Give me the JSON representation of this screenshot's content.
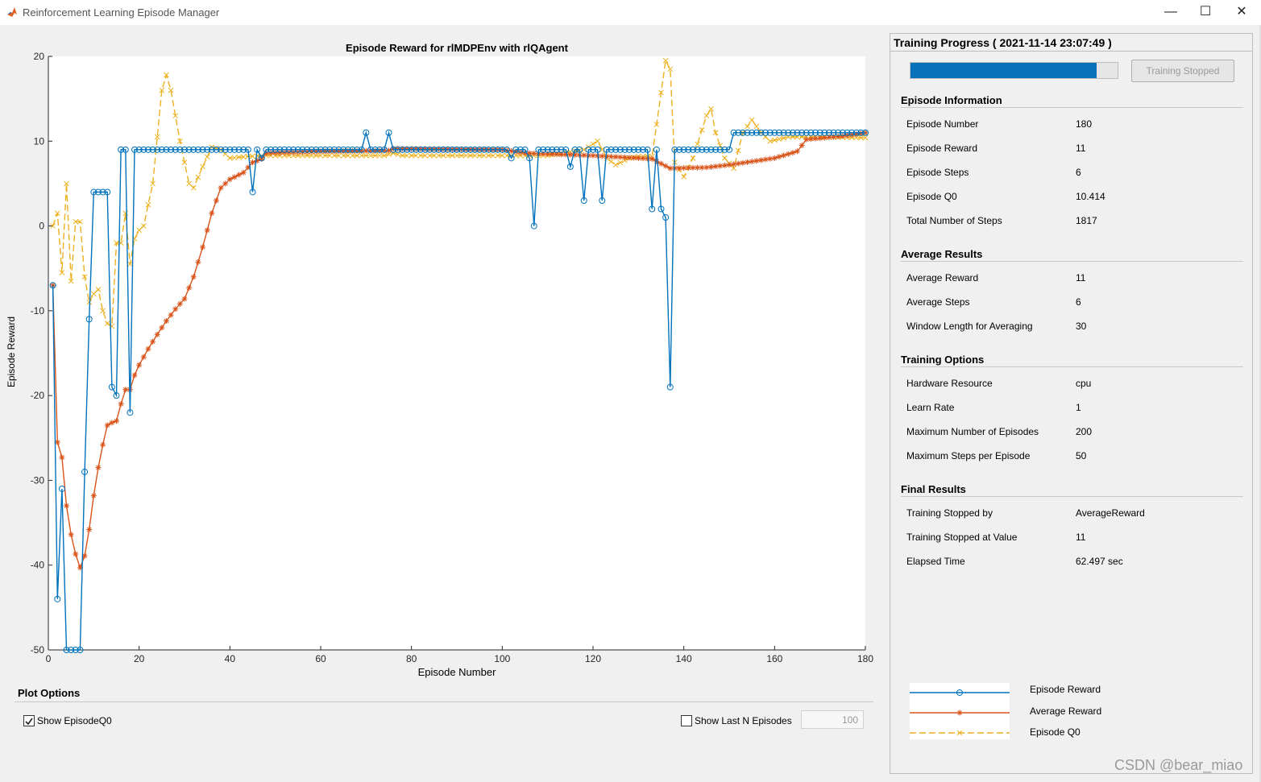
{
  "window": {
    "title": "Reinforcement Learning Episode Manager",
    "minimize": "—",
    "maximize": "☐",
    "close": "✕"
  },
  "chart_data": {
    "type": "line",
    "title": "Episode Reward for rlMDPEnv with rlQAgent",
    "xlabel": "Episode Number",
    "ylabel": "Episode Reward",
    "xlim": [
      0,
      180
    ],
    "ylim": [
      -50,
      20
    ],
    "xticks": [
      0,
      20,
      40,
      60,
      80,
      100,
      120,
      140,
      160,
      180
    ],
    "yticks": [
      -50,
      -40,
      -30,
      -20,
      -10,
      0,
      10,
      20
    ],
    "grid": false,
    "series": [
      {
        "name": "Episode Reward",
        "color": "#0072bd",
        "marker": "circle",
        "dash": "solid",
        "points": [
          [
            1,
            -7
          ],
          [
            2,
            -44
          ],
          [
            3,
            -31
          ],
          [
            4,
            -50
          ],
          [
            5,
            -50
          ],
          [
            6,
            -50
          ],
          [
            7,
            -50
          ],
          [
            8,
            -29
          ],
          [
            9,
            -11
          ],
          [
            10,
            4
          ],
          [
            11,
            4
          ],
          [
            12,
            4
          ],
          [
            13,
            4
          ],
          [
            14,
            -19
          ],
          [
            15,
            -20
          ],
          [
            16,
            9
          ],
          [
            17,
            9
          ],
          [
            18,
            -22
          ],
          [
            19,
            9
          ],
          [
            20,
            9
          ],
          [
            30,
            9
          ],
          [
            40,
            9
          ],
          [
            44,
            9
          ],
          [
            45,
            4
          ],
          [
            46,
            9
          ],
          [
            47,
            8
          ],
          [
            48,
            9
          ],
          [
            60,
            9
          ],
          [
            69,
            9
          ],
          [
            70,
            11
          ],
          [
            71,
            9
          ],
          [
            74,
            9
          ],
          [
            75,
            11
          ],
          [
            76,
            9
          ],
          [
            90,
            9
          ],
          [
            101,
            9
          ],
          [
            102,
            8
          ],
          [
            103,
            9
          ],
          [
            105,
            9
          ],
          [
            106,
            8
          ],
          [
            107,
            0
          ],
          [
            108,
            9
          ],
          [
            114,
            9
          ],
          [
            115,
            7
          ],
          [
            116,
            9
          ],
          [
            117,
            9
          ],
          [
            118,
            3
          ],
          [
            119,
            9
          ],
          [
            121,
            9
          ],
          [
            122,
            3
          ],
          [
            123,
            9
          ],
          [
            132,
            9
          ],
          [
            133,
            2
          ],
          [
            134,
            9
          ],
          [
            135,
            2
          ],
          [
            136,
            1
          ],
          [
            137,
            -19
          ],
          [
            138,
            9
          ],
          [
            150,
            9
          ],
          [
            151,
            11
          ],
          [
            180,
            11
          ]
        ]
      },
      {
        "name": "Average Reward",
        "color": "#d95319",
        "marker": "star",
        "dash": "solid",
        "points": [
          [
            1,
            -7
          ],
          [
            2,
            -25.5
          ],
          [
            3,
            -27.3
          ],
          [
            4,
            -33
          ],
          [
            5,
            -36.4
          ],
          [
            6,
            -38.7
          ],
          [
            7,
            -40.3
          ],
          [
            8,
            -38.9
          ],
          [
            9,
            -35.8
          ],
          [
            10,
            -31.8
          ],
          [
            11,
            -28.5
          ],
          [
            12,
            -25.8
          ],
          [
            13,
            -23.5
          ],
          [
            14,
            -23.2
          ],
          [
            15,
            -23
          ],
          [
            16,
            -21
          ],
          [
            17,
            -19.3
          ],
          [
            18,
            -19.3
          ],
          [
            19,
            -17.6
          ],
          [
            20,
            -16.4
          ],
          [
            22,
            -14.5
          ],
          [
            24,
            -12.8
          ],
          [
            26,
            -11.2
          ],
          [
            28,
            -9.8
          ],
          [
            30,
            -8.6
          ],
          [
            32,
            -6
          ],
          [
            34,
            -2.5
          ],
          [
            36,
            1.5
          ],
          [
            38,
            4.5
          ],
          [
            40,
            5.5
          ],
          [
            43,
            6.3
          ],
          [
            45,
            7.5
          ],
          [
            47,
            7.9
          ],
          [
            48,
            8.6
          ],
          [
            60,
            8.8
          ],
          [
            75,
            8.9
          ],
          [
            76,
            9.1
          ],
          [
            100,
            9
          ],
          [
            105,
            8.6
          ],
          [
            120,
            8.3
          ],
          [
            130,
            8
          ],
          [
            133,
            7.9
          ],
          [
            137,
            6.8
          ],
          [
            145,
            6.9
          ],
          [
            150,
            7.2
          ],
          [
            160,
            8
          ],
          [
            165,
            8.8
          ],
          [
            167,
            10.2
          ],
          [
            175,
            10.6
          ],
          [
            180,
            11
          ]
        ]
      },
      {
        "name": "Episode Q0",
        "color": "#edb120",
        "marker": "x",
        "dash": "dashed",
        "points": [
          [
            1,
            0
          ],
          [
            2,
            1.5
          ],
          [
            3,
            -5.5
          ],
          [
            4,
            5
          ],
          [
            5,
            -6.5
          ],
          [
            6,
            0.5
          ],
          [
            7,
            0.5
          ],
          [
            8,
            -6
          ],
          [
            9,
            -9
          ],
          [
            10,
            -8
          ],
          [
            11,
            -7.5
          ],
          [
            12,
            -10
          ],
          [
            13,
            -11.5
          ],
          [
            14,
            -11.8
          ],
          [
            15,
            -2
          ],
          [
            16,
            -2
          ],
          [
            17,
            1.5
          ],
          [
            18,
            -4.5
          ],
          [
            19,
            -1.5
          ],
          [
            20,
            -0.5
          ],
          [
            21,
            0
          ],
          [
            23,
            5
          ],
          [
            25,
            16
          ],
          [
            26,
            17.8
          ],
          [
            27,
            16
          ],
          [
            29,
            10
          ],
          [
            31,
            5
          ],
          [
            32,
            4.5
          ],
          [
            34,
            7
          ],
          [
            36,
            9.3
          ],
          [
            38,
            9
          ],
          [
            40,
            8
          ],
          [
            44,
            8.2
          ],
          [
            48,
            8.3
          ],
          [
            60,
            8.3
          ],
          [
            74,
            8.3
          ],
          [
            76,
            8.6
          ],
          [
            78,
            8.3
          ],
          [
            100,
            8.3
          ],
          [
            110,
            8.3
          ],
          [
            118,
            9
          ],
          [
            121,
            10
          ],
          [
            123,
            8
          ],
          [
            125,
            7.2
          ],
          [
            128,
            8
          ],
          [
            130,
            8.2
          ],
          [
            133,
            8.2
          ],
          [
            136,
            19.5
          ],
          [
            137,
            18.5
          ],
          [
            138,
            7.5
          ],
          [
            140,
            5.8
          ],
          [
            142,
            8
          ],
          [
            145,
            13
          ],
          [
            146,
            13.8
          ],
          [
            147,
            11
          ],
          [
            149,
            8
          ],
          [
            151,
            6.8
          ],
          [
            153,
            11
          ],
          [
            155,
            12.5
          ],
          [
            157,
            11
          ],
          [
            159,
            10
          ],
          [
            163,
            10.5
          ],
          [
            170,
            10.5
          ],
          [
            180,
            10.4
          ]
        ]
      }
    ]
  },
  "plot_options": {
    "title": "Plot Options",
    "show_q0_label": "Show EpisodeQ0",
    "show_q0_checked": true,
    "show_last_n_label": "Show Last N Episodes",
    "show_last_n_checked": false,
    "last_n_value": "100"
  },
  "progress": {
    "title": "Training Progress ( 2021-11-14 23:07:49 )",
    "fraction": 0.9,
    "button_label": "Training Stopped"
  },
  "sections": [
    {
      "title": "Episode Information",
      "rows": [
        [
          "Episode Number",
          "180"
        ],
        [
          "Episode Reward",
          "11"
        ],
        [
          "Episode Steps",
          "6"
        ],
        [
          "Episode Q0",
          "10.414"
        ],
        [
          "Total Number of Steps",
          "1817"
        ]
      ]
    },
    {
      "title": "Average Results",
      "rows": [
        [
          "Average Reward",
          "11"
        ],
        [
          "Average Steps",
          "6"
        ],
        [
          "Window Length for Averaging",
          "30"
        ]
      ]
    },
    {
      "title": "Training Options",
      "rows": [
        [
          "Hardware Resource",
          "cpu"
        ],
        [
          "Learn Rate",
          "1"
        ],
        [
          "Maximum Number of Episodes",
          "200"
        ],
        [
          "Maximum Steps per Episode",
          "50"
        ]
      ]
    },
    {
      "title": "Final Results",
      "rows": [
        [
          "Training Stopped by",
          "AverageReward"
        ],
        [
          "Training Stopped at Value",
          "11"
        ],
        [
          "Elapsed Time",
          "62.497 sec"
        ]
      ]
    }
  ],
  "legend": [
    "Episode Reward",
    "Average Reward",
    "Episode Q0"
  ],
  "watermark": "CSDN @bear_miao"
}
